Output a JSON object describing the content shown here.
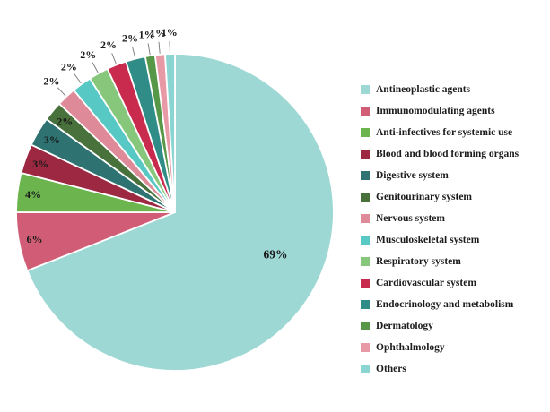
{
  "chart_data": {
    "type": "pie",
    "title": "",
    "legend_position": "right",
    "start_angle_deg": 0,
    "direction": "clockwise",
    "total": 100,
    "slices": [
      {
        "label": "Antineoplastic agents",
        "value": 69,
        "pct_label": "69%",
        "color": "#9ed8d4",
        "label_placement": "inside",
        "label_xy": [
          307,
          284
        ]
      },
      {
        "label": "Immunomodulating agents",
        "value": 6,
        "pct_label": "6%",
        "color": "#d15c75",
        "label_placement": "inside"
      },
      {
        "label": "Anti-infectives for systemic use",
        "value": 4,
        "pct_label": "4%",
        "color": "#6cb44e",
        "label_placement": "inside"
      },
      {
        "label": "Blood and blood forming organs",
        "value": 3,
        "pct_label": "3%",
        "color": "#9c2841",
        "label_placement": "inside"
      },
      {
        "label": "Digestive system",
        "value": 3,
        "pct_label": "3%",
        "color": "#2e7372",
        "label_placement": "inside"
      },
      {
        "label": "Genitourinary system",
        "value": 2,
        "pct_label": "2%",
        "color": "#48713c",
        "label_placement": "inside"
      },
      {
        "label": "Nervous system",
        "value": 2,
        "pct_label": "2%",
        "color": "#df8a99",
        "label_placement": "outside"
      },
      {
        "label": "Musculoskeletal system",
        "value": 2,
        "pct_label": "2%",
        "color": "#57c8c3",
        "label_placement": "outside"
      },
      {
        "label": "Respiratory system",
        "value": 2,
        "pct_label": "2%",
        "color": "#86c77b",
        "label_placement": "outside"
      },
      {
        "label": "Cardiovascular system",
        "value": 2,
        "pct_label": "2%",
        "color": "#c92b4e",
        "label_placement": "outside"
      },
      {
        "label": "Endocrinology and metabolism",
        "value": 2,
        "pct_label": "2%",
        "color": "#2f8c86",
        "label_placement": "outside"
      },
      {
        "label": "Dermatology",
        "value": 1,
        "pct_label": "1%",
        "color": "#579748",
        "label_placement": "outside"
      },
      {
        "label": "Ophthalmology",
        "value": 1,
        "pct_label": "1%",
        "color": "#e899a6",
        "label_placement": "outside"
      },
      {
        "label": "Others",
        "value": 1,
        "pct_label": "1%",
        "color": "#8ad5d2",
        "label_placement": "outside"
      }
    ]
  },
  "colors": {
    "background": "#ffffff",
    "label_text": "#191919",
    "leader_line": "#777777",
    "slice_border": "#ffffff"
  }
}
